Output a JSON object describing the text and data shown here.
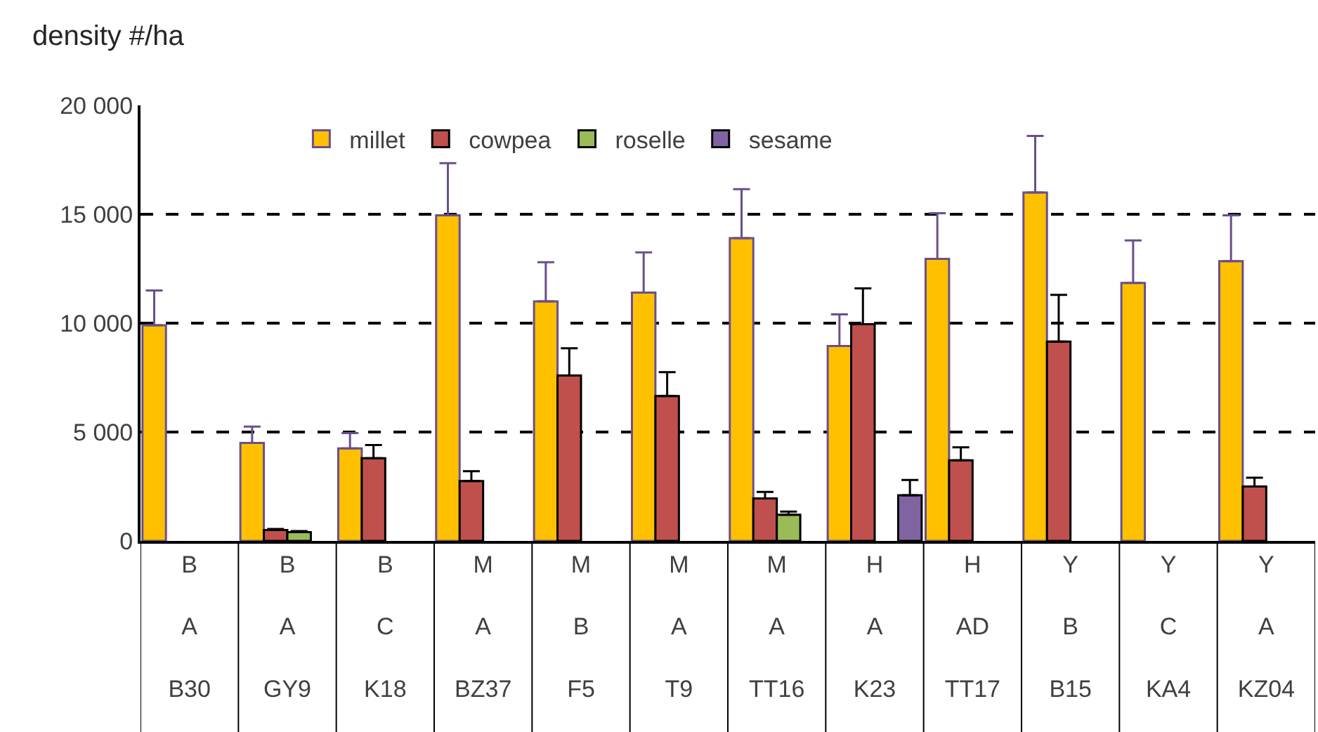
{
  "chart_data": {
    "type": "bar",
    "ylabel": "density #/ha",
    "categories": [
      "B\nA\nB30",
      "B\nA\nGY9",
      "B\nC\nK18",
      "M\nA\nBZ37",
      "M\nB\nF5",
      "M\nA\nT9",
      "M\nA\nTT16",
      "H\nA\nK23",
      "H\nAD\nTT17",
      "Y\nB\nB15",
      "Y\nC\nKA4",
      "Y\nA\nKZ04"
    ],
    "series": [
      {
        "name": "millet",
        "color": "#ffc000",
        "values": [
          9900,
          4500,
          4250,
          14950,
          11000,
          11400,
          13900,
          8950,
          12950,
          16000,
          11850,
          12850
        ],
        "errors": [
          1600,
          750,
          700,
          2400,
          1800,
          1850,
          2250,
          1450,
          2100,
          2600,
          1950,
          2100
        ]
      },
      {
        "name": "cowpea",
        "color": "#c0504d",
        "values": [
          null,
          500,
          3800,
          2750,
          7600,
          6650,
          1950,
          9950,
          3700,
          9150,
          null,
          2500
        ],
        "errors": [
          null,
          50,
          600,
          450,
          1250,
          1100,
          300,
          1650,
          600,
          2150,
          null,
          400
        ]
      },
      {
        "name": "roselle",
        "color": "#9bbb59",
        "values": [
          null,
          400,
          null,
          null,
          null,
          null,
          1200,
          null,
          null,
          null,
          null,
          null
        ],
        "errors": [
          null,
          50,
          null,
          null,
          null,
          null,
          150,
          null,
          null,
          null,
          null,
          null
        ]
      },
      {
        "name": "sesame",
        "color": "#8064a2",
        "values": [
          null,
          null,
          null,
          null,
          null,
          null,
          null,
          2100,
          null,
          null,
          null,
          null
        ],
        "errors": [
          null,
          null,
          null,
          null,
          null,
          null,
          null,
          700,
          null,
          null,
          null,
          null
        ]
      }
    ],
    "ylim": [
      0,
      20000
    ],
    "yticks": [
      {
        "value": 0,
        "label": "0"
      },
      {
        "value": 5000,
        "label": "5 000"
      },
      {
        "value": 10000,
        "label": "10 000"
      },
      {
        "value": 15000,
        "label": "15 000"
      },
      {
        "value": 20000,
        "label": "20 000"
      }
    ],
    "grid": "y",
    "legend": "top"
  }
}
